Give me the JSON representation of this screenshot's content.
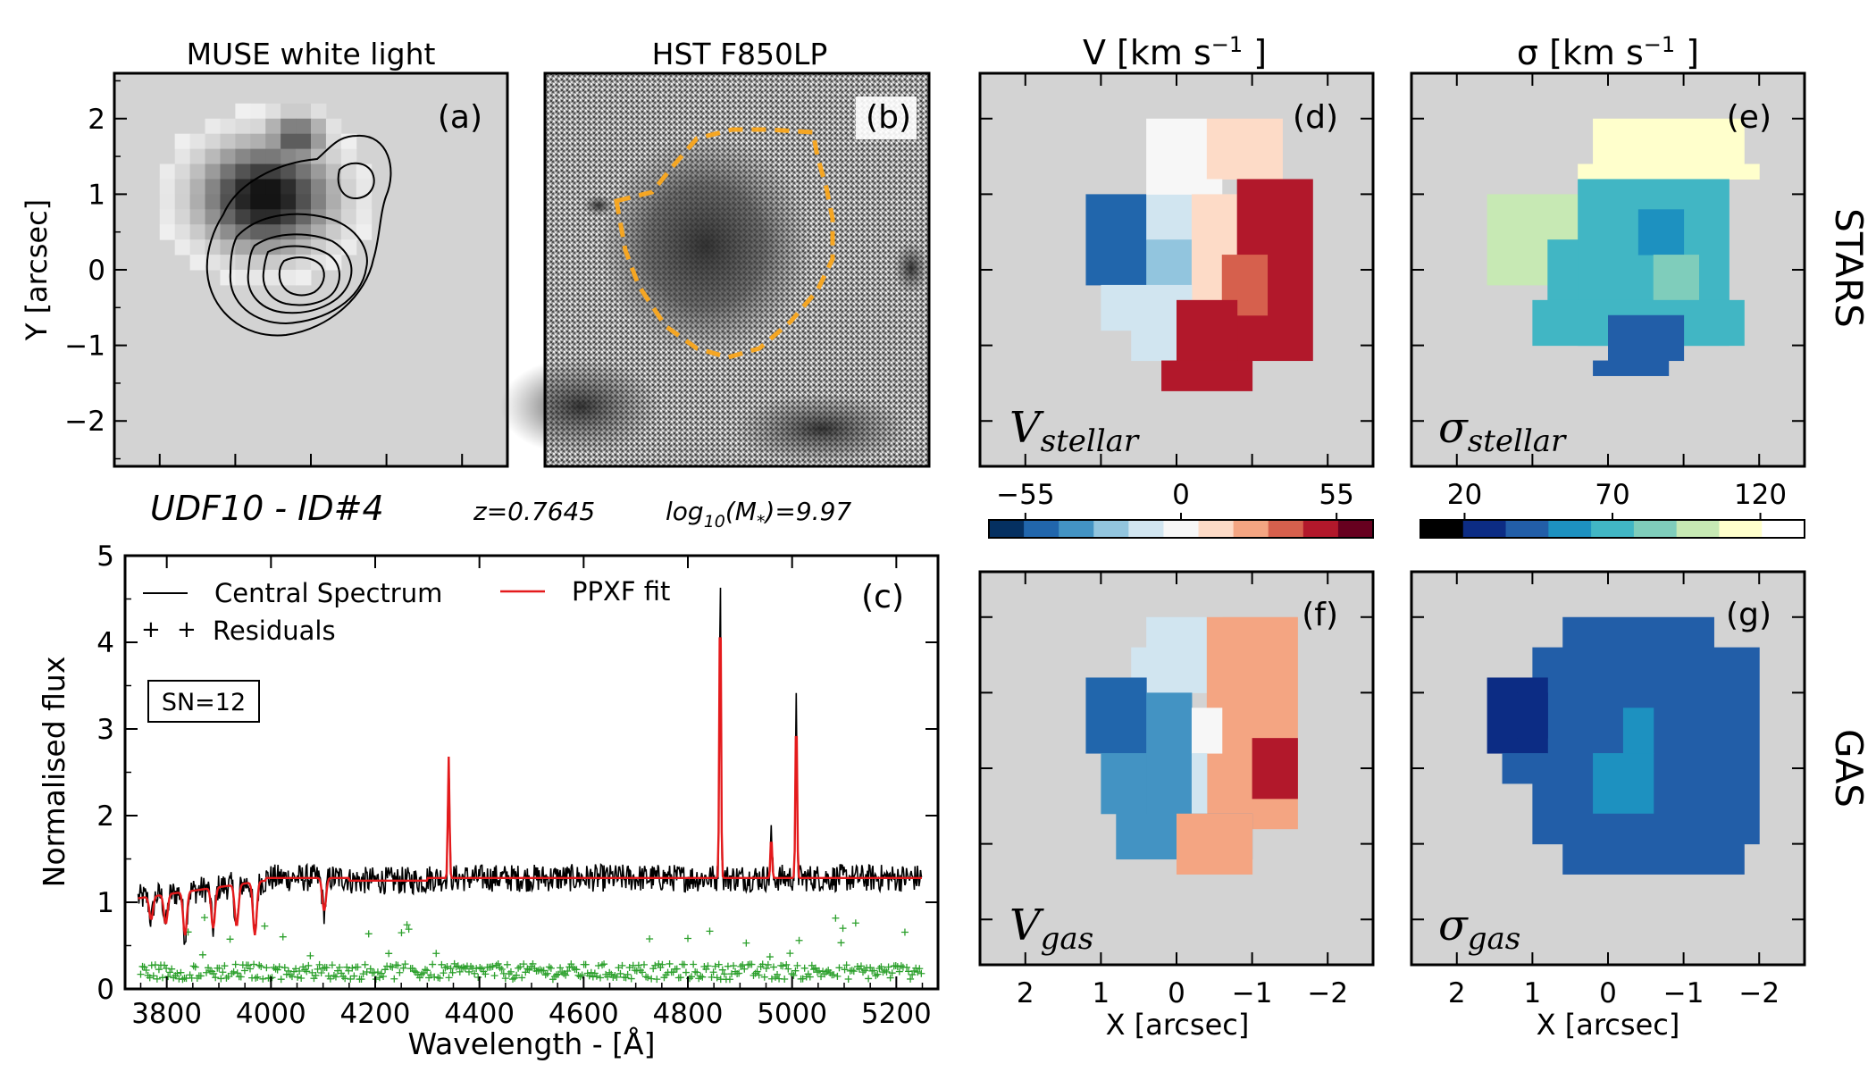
{
  "header": {
    "object_id": "UDF10 - ID#4",
    "redshift": "z=0.7645",
    "mass_prefix": "log",
    "mass_sub": "10",
    "mass_mid": "(M",
    "mass_star": "*",
    "mass_suffix": ")=9.97"
  },
  "titles": {
    "a": "MUSE white light",
    "b": "HST F850LP",
    "d_prefix": "V [km s",
    "d_exp": "−1",
    "d_suffix": " ]",
    "e_prefix": "σ [km s",
    "e_exp": "−1",
    "e_suffix": " ]"
  },
  "panel_labels": {
    "a": "(a)",
    "b": "(b)",
    "c": "(c)",
    "d": "(d)",
    "e": "(e)",
    "f": "(f)",
    "g": "(g)"
  },
  "row_labels": {
    "stars": "STARS",
    "gas": "GAS"
  },
  "map_labels": {
    "d_main": "V",
    "d_sub": "stellar",
    "e_main": "σ",
    "e_sub": "stellar",
    "f_main": "V",
    "f_sub": "gas",
    "g_main": "σ",
    "g_sub": "gas"
  },
  "axes": {
    "y_arcsec": "Y [arcsec]",
    "x_arcsec": "X [arcsec]",
    "spec_x": "Wavelength - [Å]",
    "spec_y": "Normalised flux",
    "arcsec_ticks": [
      "2",
      "1",
      "0",
      "−1",
      "−2"
    ]
  },
  "colorbars": {
    "velocity": {
      "ticks": [
        "−55",
        "0",
        "55"
      ],
      "colors": [
        "#053061",
        "#2166ac",
        "#4393c3",
        "#92c5de",
        "#d1e5f0",
        "#f7f7f7",
        "#fddbc7",
        "#f4a582",
        "#d6604d",
        "#b2182b",
        "#67001f"
      ]
    },
    "dispersion": {
      "ticks": [
        "20",
        "70",
        "120"
      ],
      "colors": [
        "#000000",
        "#0c2c84",
        "#225ea8",
        "#1d91c0",
        "#41b6c4",
        "#7fcdbb",
        "#c7e9b4",
        "#ffffcc",
        "#ffffff"
      ]
    }
  },
  "legend": {
    "central": "Central Spectrum",
    "fit": "PPXF fit",
    "residuals": "Residuals",
    "sn_box": "SN=12"
  },
  "colors": {
    "panel_bg": "#d3d3d3",
    "spectrum": "#000000",
    "fit": "#e41a1c",
    "residuals": "#2ca02c",
    "hst_contour": "#f5a623"
  },
  "chart_data": [
    {
      "type": "heatmap",
      "panel": "a",
      "title": "MUSE white light",
      "ylabel": "Y [arcsec]",
      "ylim": [
        -2.6,
        2.6
      ],
      "xlim": [
        2.6,
        -2.6
      ],
      "y_ticks": [
        2,
        1,
        0,
        -1,
        -2
      ]
    },
    {
      "type": "heatmap",
      "panel": "b",
      "title": "HST F850LP"
    },
    {
      "type": "line",
      "panel": "c",
      "xlabel": "Wavelength - [Å]",
      "ylabel": "Normalised flux",
      "xlim": [
        3720,
        5280
      ],
      "ylim": [
        0,
        5
      ],
      "x_ticks": [
        3800,
        4000,
        4200,
        4400,
        4600,
        4800,
        5000,
        5200
      ],
      "y_ticks": [
        0,
        1,
        2,
        3,
        4,
        5
      ],
      "series": [
        {
          "name": "Central Spectrum",
          "baseline_continuum": 1.2
        },
        {
          "name": "PPXF fit",
          "emission_peaks": [
            [
              4341,
              2.6
            ],
            [
              4862,
              4.6
            ],
            [
              4960,
              1.7
            ],
            [
              5008,
              3.2
            ]
          ]
        },
        {
          "name": "Residuals",
          "typical": 0.2,
          "max": 0.9
        }
      ],
      "absorption_features": [
        [
          3770,
          0.8
        ],
        [
          3798,
          0.75
        ],
        [
          3835,
          0.62
        ],
        [
          3889,
          0.7
        ],
        [
          3934,
          0.72
        ],
        [
          3969,
          0.62
        ],
        [
          4102,
          0.9
        ]
      ],
      "annotation": "SN=12"
    },
    {
      "type": "heatmap",
      "panel": "d",
      "title": "V [km s−1 ]",
      "label": "V stellar",
      "colorbar_range": [
        -55,
        55
      ],
      "xlabel": "X [arcsec]",
      "x_ticks": [
        2,
        1,
        0,
        -1,
        -2
      ],
      "regions": [
        {
          "name": "west",
          "value_class": "blue",
          "approx": -45
        },
        {
          "name": "center-north",
          "value_class": "white",
          "approx": 0
        },
        {
          "name": "east",
          "value_class": "red",
          "approx": 45
        }
      ]
    },
    {
      "type": "heatmap",
      "panel": "e",
      "title": "σ [km s−1 ]",
      "label": "σ stellar",
      "colorbar_range": [
        20,
        120
      ],
      "regions": [
        {
          "name": "north",
          "approx": 110
        },
        {
          "name": "west",
          "approx": 90
        },
        {
          "name": "body",
          "approx": 70
        },
        {
          "name": "south",
          "approx": 40
        }
      ]
    },
    {
      "type": "heatmap",
      "panel": "f",
      "label": "V gas",
      "xlabel": "X [arcsec]",
      "x_ticks": [
        2,
        1,
        0,
        -1,
        -2
      ],
      "regions": [
        {
          "name": "west",
          "approx": -40
        },
        {
          "name": "center",
          "approx": 0
        },
        {
          "name": "east",
          "approx": 30
        },
        {
          "name": "east-inner",
          "approx": 50
        }
      ]
    },
    {
      "type": "heatmap",
      "panel": "g",
      "label": "σ gas",
      "xlabel": "X [arcsec]",
      "x_ticks": [
        2,
        1,
        0,
        -1,
        -2
      ],
      "regions": [
        {
          "name": "west",
          "approx": 30
        },
        {
          "name": "body",
          "approx": 45
        },
        {
          "name": "center",
          "approx": 60
        }
      ]
    }
  ]
}
